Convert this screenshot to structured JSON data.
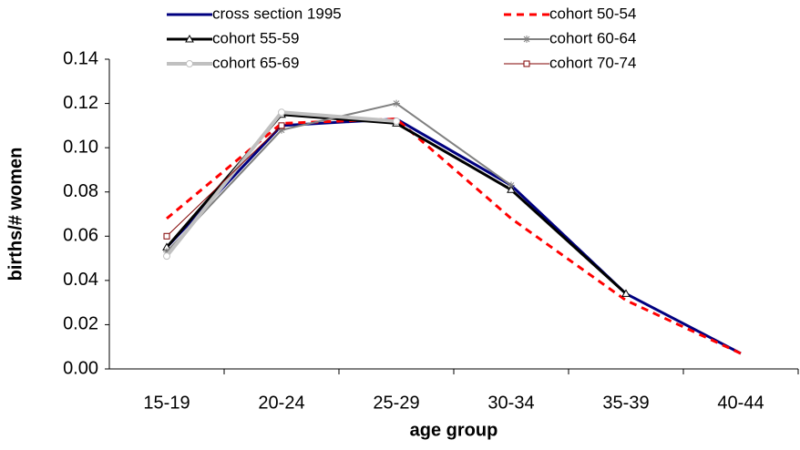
{
  "chart_data": {
    "type": "line",
    "x_label": "age group",
    "y_label": "births/# women",
    "categories": [
      "15-19",
      "20-24",
      "25-29",
      "30-34",
      "35-39",
      "40-44"
    ],
    "series": [
      {
        "name": "cross section 1995",
        "color": "#000080",
        "width": 3,
        "marker": "none",
        "dash": false,
        "values": [
          0.055,
          0.11,
          0.113,
          0.083,
          0.034,
          0.007
        ]
      },
      {
        "name": "cohort 50-54",
        "color": "#ff0000",
        "width": 3,
        "marker": "none",
        "dash": true,
        "values": [
          0.068,
          0.111,
          0.113,
          0.068,
          0.031,
          0.007
        ]
      },
      {
        "name": "cohort 55-59",
        "color": "#000000",
        "width": 3,
        "marker": "triangle",
        "dash": false,
        "values": [
          0.055,
          0.115,
          0.111,
          0.081,
          0.034,
          null
        ]
      },
      {
        "name": "cohort 60-64",
        "color": "#808080",
        "width": 2,
        "marker": "star",
        "dash": false,
        "values": [
          0.053,
          0.108,
          0.12,
          0.083,
          null,
          null
        ]
      },
      {
        "name": "cohort 65-69",
        "color": "#c0c0c0",
        "width": 4,
        "marker": "circle",
        "dash": false,
        "values": [
          0.051,
          0.116,
          0.112,
          null,
          null,
          null
        ]
      },
      {
        "name": "cohort 70-74",
        "color": "#800000",
        "width": 1,
        "marker": "square",
        "dash": false,
        "values": [
          0.06,
          0.11,
          null,
          null,
          null,
          null
        ]
      }
    ],
    "ylim": [
      0,
      0.14
    ],
    "yticks": [
      {
        "value": 0,
        "label": "0.00"
      },
      0.02,
      0.04,
      0.06,
      0.08,
      {
        "value": 0.1,
        "label": "0.10"
      },
      0.12,
      0.14
    ]
  }
}
